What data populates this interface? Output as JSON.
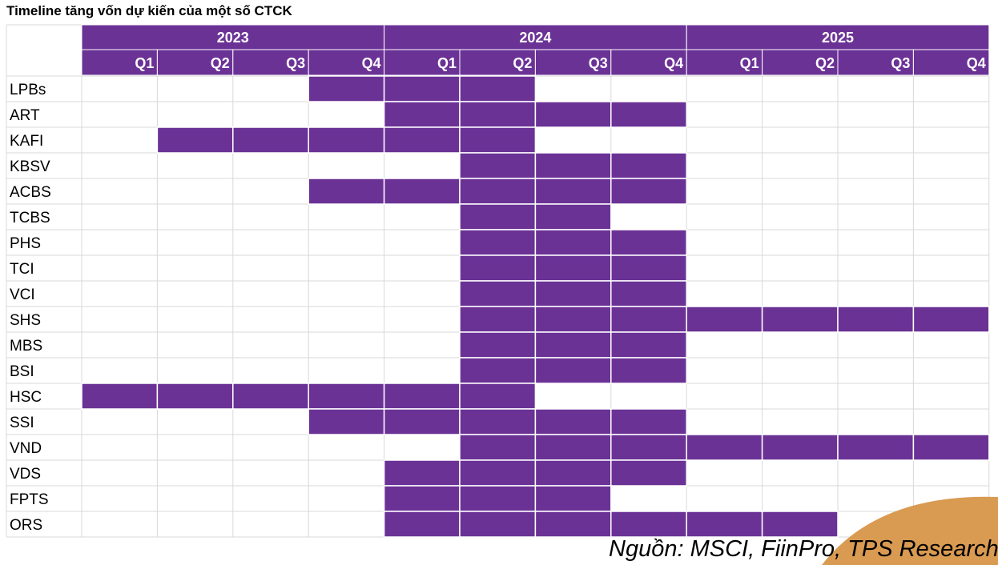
{
  "title": "Timeline tăng vốn dự kiến của một số CTCK",
  "source": "Nguồn: MSCI, FiinPro, TPS Research",
  "colors": {
    "bar": "#6b3296",
    "grid": "#d9d9d9",
    "header_text": "#ffffff",
    "decor": "#d99a52"
  },
  "chart_data": {
    "type": "table",
    "years": [
      "2023",
      "2024",
      "2025"
    ],
    "quarters": [
      "Q1",
      "Q2",
      "Q3",
      "Q4"
    ],
    "periods": [
      "2023-Q1",
      "2023-Q2",
      "2023-Q3",
      "2023-Q4",
      "2024-Q1",
      "2024-Q2",
      "2024-Q3",
      "2024-Q4",
      "2025-Q1",
      "2025-Q2",
      "2025-Q3",
      "2025-Q4"
    ],
    "companies": [
      {
        "name": "LPBs",
        "start": "2023-Q4",
        "end": "2024-Q2"
      },
      {
        "name": "ART",
        "start": "2024-Q1",
        "end": "2024-Q4"
      },
      {
        "name": "KAFI",
        "start": "2023-Q2",
        "end": "2024-Q2"
      },
      {
        "name": "KBSV",
        "start": "2024-Q2",
        "end": "2024-Q4"
      },
      {
        "name": "ACBS",
        "start": "2023-Q4",
        "end": "2024-Q4"
      },
      {
        "name": "TCBS",
        "start": "2024-Q2",
        "end": "2024-Q3"
      },
      {
        "name": "PHS",
        "start": "2024-Q2",
        "end": "2024-Q4"
      },
      {
        "name": "TCI",
        "start": "2024-Q2",
        "end": "2024-Q4"
      },
      {
        "name": "VCI",
        "start": "2024-Q2",
        "end": "2024-Q4"
      },
      {
        "name": "SHS",
        "start": "2024-Q2",
        "end": "2025-Q4"
      },
      {
        "name": "MBS",
        "start": "2024-Q2",
        "end": "2024-Q4"
      },
      {
        "name": "BSI",
        "start": "2024-Q2",
        "end": "2024-Q4"
      },
      {
        "name": "HSC",
        "start": "2023-Q1",
        "end": "2024-Q2"
      },
      {
        "name": "SSI",
        "start": "2023-Q4",
        "end": "2024-Q4"
      },
      {
        "name": "VND",
        "start": "2024-Q2",
        "end": "2025-Q4"
      },
      {
        "name": "VDS",
        "start": "2024-Q1",
        "end": "2024-Q4"
      },
      {
        "name": "FPTS",
        "start": "2024-Q1",
        "end": "2024-Q3"
      },
      {
        "name": "ORS",
        "start": "2024-Q1",
        "end": "2025-Q2"
      }
    ]
  }
}
